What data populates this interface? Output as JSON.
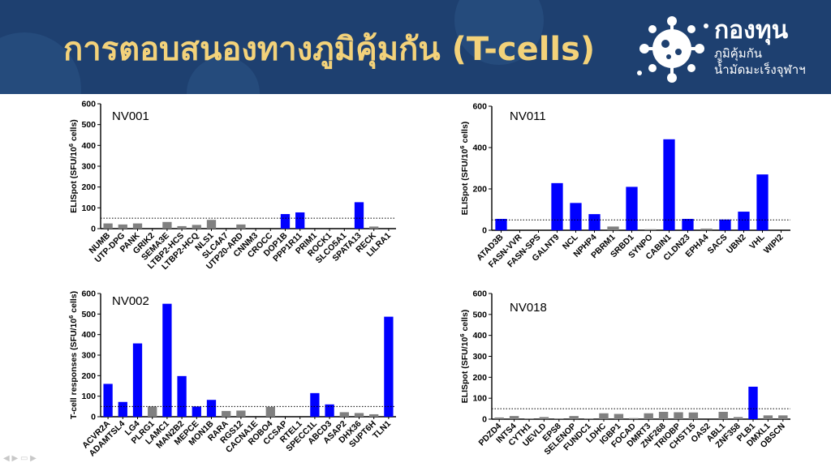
{
  "header": {
    "title": "การตอบสนองทางภูมิคุ้มกัน (T-cells)",
    "logo_name": "กองทุน",
    "logo_sub1": "ภูมิคุ้มกัน",
    "logo_sub2": "น้ำมัดมะเร็งจุฬาฯ",
    "background": "#1e4070",
    "title_color": "#f3d27a"
  },
  "colors": {
    "positive_bar": "#0000ff",
    "negative_bar": "#808080"
  },
  "chart_data": [
    {
      "type": "bar",
      "title": "NV001",
      "ylabel": "ELISpot (SFU/10^6 cells)",
      "ylim": [
        0,
        600
      ],
      "yticks": [
        0,
        100,
        200,
        300,
        400,
        500,
        600
      ],
      "threshold": 50,
      "categories": [
        "NUMB",
        "UTP-DPG",
        "PANK",
        "GRIK2",
        "SEMA3E",
        "LTBP2-HCS",
        "LTBP2-HCQ",
        "NLS1",
        "SLC4A7",
        "UTP20-ARD",
        "CNNM3",
        "CROCC",
        "DOP1B",
        "PPP1R11",
        "PRIM1",
        "ROCK1",
        "SLCO5A1",
        "SPATA13",
        "RECK",
        "LILRA1"
      ],
      "values": [
        25,
        20,
        25,
        0,
        32,
        12,
        18,
        42,
        0,
        20,
        0,
        0,
        70,
        78,
        0,
        0,
        0,
        127,
        10,
        0
      ],
      "positive": [
        false,
        false,
        false,
        false,
        false,
        false,
        false,
        false,
        false,
        false,
        false,
        false,
        true,
        true,
        false,
        false,
        false,
        true,
        false,
        false
      ]
    },
    {
      "type": "bar",
      "title": "NV011",
      "ylabel": "ELISpot (SFU/10^6 cells)",
      "ylim": [
        0,
        600
      ],
      "yticks": [
        0,
        200,
        400,
        600
      ],
      "threshold": 50,
      "categories": [
        "ATAD3B",
        "FASN-VVR",
        "FASN-SPS",
        "GALNT9",
        "NCL",
        "NPHP4",
        "PBRM1",
        "SRBD1",
        "SYNPO",
        "CABIN1",
        "CLDN23",
        "EPHA4",
        "SACS",
        "UBN2",
        "VHL",
        "WIPI2"
      ],
      "values": [
        55,
        0,
        0,
        228,
        132,
        78,
        18,
        210,
        5,
        440,
        55,
        8,
        52,
        90,
        270,
        0
      ],
      "positive": [
        true,
        false,
        false,
        true,
        true,
        true,
        false,
        true,
        false,
        true,
        true,
        false,
        true,
        true,
        true,
        false
      ]
    },
    {
      "type": "bar",
      "title": "NV002",
      "ylabel": "T-cell responses (SFU/10^6 cells)",
      "ylim": [
        0,
        600
      ],
      "yticks": [
        0,
        100,
        200,
        300,
        400,
        500,
        600
      ],
      "threshold": 50,
      "categories": [
        "ACVR2A",
        "ADAMTSL4",
        "LG4",
        "PLRG1",
        "LAMC1",
        "MAN2B2",
        "MEPCE",
        "MON1B",
        "RARA",
        "RGS12",
        "CACNA1E",
        "ROBO4",
        "CCSAP",
        "RTEL1",
        "SPECC1L",
        "ABCD3",
        "ASAP2",
        "DHX36",
        "SUPT6H",
        "TLN1"
      ],
      "values": [
        160,
        72,
        357,
        50,
        550,
        198,
        50,
        82,
        28,
        30,
        0,
        48,
        0,
        0,
        115,
        60,
        22,
        18,
        12,
        487
      ],
      "positive": [
        true,
        true,
        true,
        false,
        true,
        true,
        true,
        true,
        false,
        false,
        false,
        false,
        false,
        false,
        true,
        true,
        false,
        false,
        false,
        true
      ]
    },
    {
      "type": "bar",
      "title": "NV018",
      "ylabel": "ELISpot (SFU/10^6 cells)",
      "ylim": [
        0,
        600
      ],
      "yticks": [
        0,
        100,
        200,
        300,
        400,
        500,
        600
      ],
      "threshold": 50,
      "categories": [
        "PDZD4",
        "INTS4",
        "CYTH1",
        "UEVLD",
        "EPS8",
        "SELENOP",
        "FUNDC1",
        "LDHC",
        "IGBP1",
        "FOCAD",
        "DMRT3",
        "ZNF268",
        "TRIOBP",
        "CHST15",
        "OAS2",
        "ABL1",
        "ZNF358",
        "PLB1",
        "DMXL1",
        "OBSCN"
      ],
      "values": [
        8,
        15,
        2,
        10,
        2,
        15,
        2,
        28,
        25,
        5,
        28,
        35,
        33,
        32,
        0,
        35,
        10,
        155,
        18,
        18
      ],
      "positive": [
        false,
        false,
        false,
        false,
        false,
        false,
        false,
        false,
        false,
        false,
        false,
        false,
        false,
        false,
        false,
        false,
        false,
        true,
        false,
        false
      ]
    }
  ]
}
